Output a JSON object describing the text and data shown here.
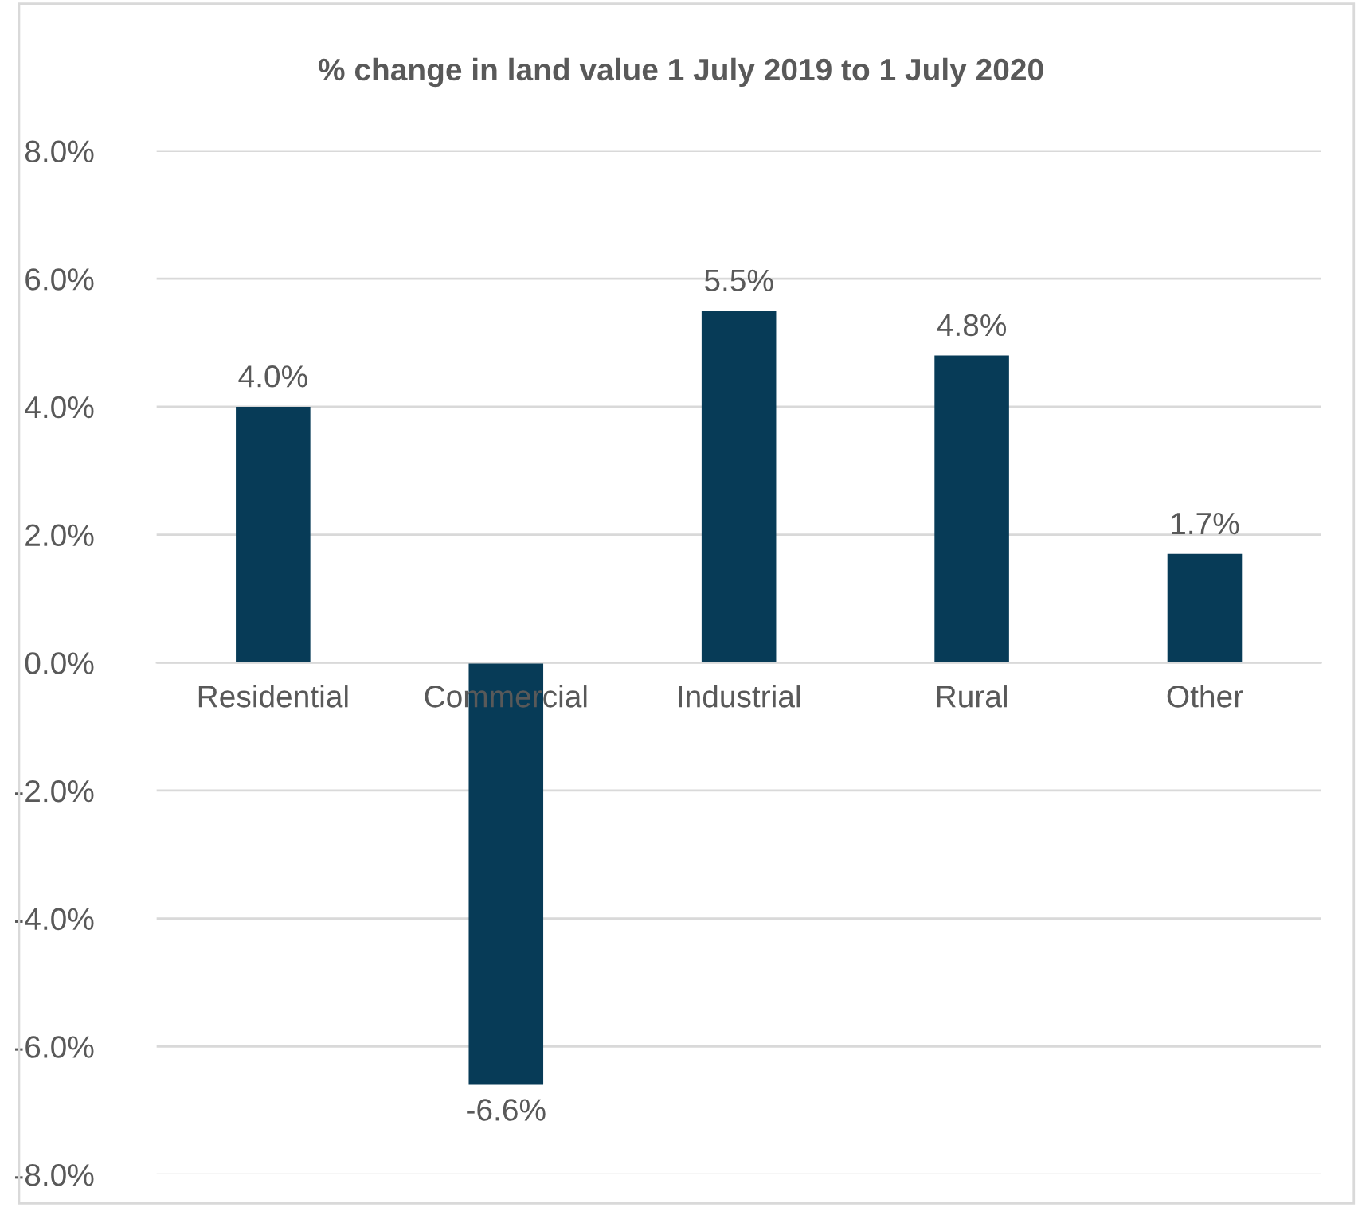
{
  "chart_data": {
    "type": "bar",
    "title": "% change in land value 1 July 2019 to 1 July 2020",
    "categories": [
      "Residential",
      "Commercial",
      "Industrial",
      "Rural",
      "Other"
    ],
    "values": [
      4.0,
      -6.6,
      5.5,
      4.8,
      1.7
    ],
    "value_labels": [
      "4.0%",
      "-6.6%",
      "5.5%",
      "4.8%",
      "1.7%"
    ],
    "color": "#073b57",
    "ylim": [
      -8,
      8
    ],
    "yticks": [
      {
        "value": -8,
        "label": "-8.0%"
      },
      {
        "value": -6,
        "label": "-6.0%"
      },
      {
        "value": -4,
        "label": "-4.0%"
      },
      {
        "value": -2,
        "label": "-2.0%"
      },
      {
        "value": 0,
        "label": "0.0%"
      },
      {
        "value": 2,
        "label": "2.0%"
      },
      {
        "value": 4,
        "label": "4.0%"
      },
      {
        "value": 6,
        "label": "6.0%"
      },
      {
        "value": 8,
        "label": "8.0%"
      }
    ],
    "grid": "y",
    "legend": false
  }
}
